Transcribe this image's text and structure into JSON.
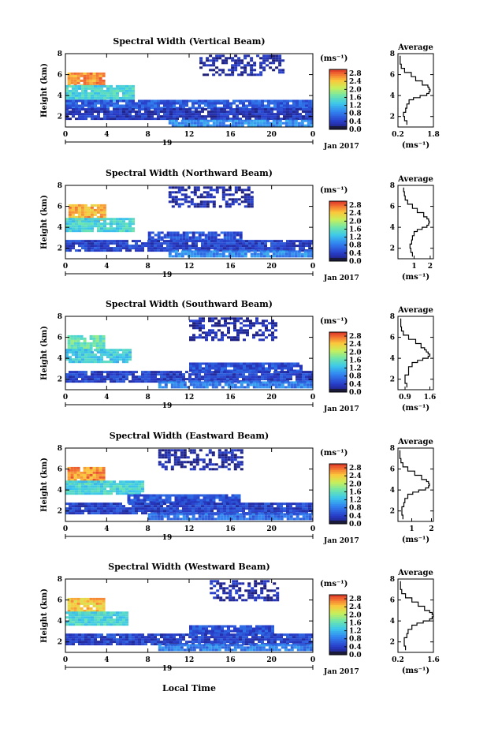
{
  "figure": {
    "bottom_xlabel": "Local Time"
  },
  "chart_data": [
    {
      "type": "heatmap",
      "title": "Spectral Width (Vertical Beam)",
      "ylabel": "Height (km)",
      "ylim": [
        1,
        8
      ],
      "yticks": [
        "2",
        "4",
        "6",
        "8"
      ],
      "xlim": [
        0,
        24
      ],
      "xticks": [
        "0",
        "4",
        "8",
        "12",
        "16",
        "20",
        "0"
      ],
      "day_label": "19",
      "month_label": "Jan 2017",
      "colorbar": {
        "unit": "(ms⁻¹)",
        "ticks": [
          "0.0",
          "0.4",
          "0.8",
          "1.2",
          "1.6",
          "2.0",
          "2.4",
          "2.8"
        ],
        "range": [
          0,
          3.0
        ]
      },
      "layers": [
        {
          "t0": 0.2,
          "t1": 3.8,
          "h0": 4.9,
          "h1": 6.2,
          "value": 2.6
        },
        {
          "t0": 0.0,
          "t1": 6.5,
          "h0": 3.6,
          "h1": 5.0,
          "value": 1.4
        },
        {
          "t0": 0.0,
          "t1": 24.0,
          "h0": 2.8,
          "h1": 3.6,
          "value": 0.6
        },
        {
          "t0": 0.0,
          "t1": 24.0,
          "h0": 1.7,
          "h1": 2.8,
          "value": 0.3
        },
        {
          "t0": 10.0,
          "t1": 24.0,
          "h0": 1.2,
          "h1": 1.7,
          "value": 0.9
        },
        {
          "t0": 13.0,
          "t1": 21.0,
          "h0": 6.0,
          "h1": 7.9,
          "value": 0.2
        }
      ],
      "average_profile": {
        "title": "Average",
        "xlabel": "(ms⁻¹)",
        "xticks": [
          "0.2",
          "1.8"
        ],
        "xlim": [
          0.2,
          1.8
        ],
        "ylim": [
          1,
          8
        ],
        "yticks": [
          "2",
          "4",
          "6",
          "8"
        ],
        "height_km": [
          1.2,
          1.6,
          2.0,
          2.4,
          2.8,
          3.2,
          3.6,
          3.8,
          4.0,
          4.2,
          4.4,
          4.6,
          4.8,
          5.0,
          5.4,
          5.8,
          6.2,
          6.6,
          7.0,
          7.4,
          7.8
        ],
        "width": [
          0.6,
          0.5,
          0.45,
          0.55,
          0.6,
          0.7,
          0.9,
          1.2,
          1.5,
          1.6,
          1.65,
          1.6,
          1.55,
          1.3,
          1.0,
          0.8,
          0.5,
          0.35,
          0.3,
          0.3,
          0.3
        ]
      }
    },
    {
      "type": "heatmap",
      "title": "Spectral Width (Northward Beam)",
      "ylabel": "Height (km)",
      "ylim": [
        1,
        8
      ],
      "yticks": [
        "2",
        "4",
        "6",
        "8"
      ],
      "xlim": [
        0,
        24
      ],
      "xticks": [
        "0",
        "4",
        "8",
        "12",
        "16",
        "20",
        "0"
      ],
      "day_label": "19",
      "month_label": "Jan 2017",
      "colorbar": {
        "unit": "(ms⁻¹)",
        "ticks": [
          "0.0",
          "0.4",
          "0.8",
          "1.2",
          "1.6",
          "2.0",
          "2.4",
          "2.8"
        ],
        "range": [
          0,
          3.0
        ]
      },
      "layers": [
        {
          "t0": 0.3,
          "t1": 3.8,
          "h0": 4.8,
          "h1": 6.2,
          "value": 2.5
        },
        {
          "t0": 0.0,
          "t1": 6.5,
          "h0": 3.6,
          "h1": 4.9,
          "value": 1.4
        },
        {
          "t0": 8.0,
          "t1": 17.0,
          "h0": 2.8,
          "h1": 3.6,
          "value": 0.5
        },
        {
          "t0": 0.0,
          "t1": 24.0,
          "h0": 1.8,
          "h1": 2.8,
          "value": 0.4
        },
        {
          "t0": 10.0,
          "t1": 24.0,
          "h0": 1.2,
          "h1": 1.8,
          "value": 0.9
        },
        {
          "t0": 10.0,
          "t1": 18.0,
          "h0": 6.0,
          "h1": 7.9,
          "value": 0.2
        }
      ],
      "average_profile": {
        "title": "Average",
        "xlabel": "(ms⁻¹)",
        "xticks": [
          "1",
          "2"
        ],
        "xlim": [
          0.0,
          2.2
        ],
        "ylim": [
          1,
          8
        ],
        "yticks": [
          "2",
          "4",
          "6",
          "8"
        ],
        "height_km": [
          1.2,
          1.6,
          2.0,
          2.4,
          2.8,
          3.2,
          3.6,
          3.8,
          4.0,
          4.2,
          4.4,
          4.6,
          4.8,
          5.0,
          5.4,
          5.8,
          6.2,
          6.6,
          7.0,
          7.4,
          7.8
        ],
        "width": [
          0.9,
          0.8,
          0.75,
          0.85,
          0.9,
          1.0,
          1.2,
          1.5,
          1.8,
          1.9,
          1.95,
          1.9,
          1.8,
          1.6,
          1.2,
          0.9,
          0.6,
          0.45,
          0.4,
          0.35,
          0.35
        ]
      }
    },
    {
      "type": "heatmap",
      "title": "Spectral Width (Southward Beam)",
      "ylabel": "Height (km)",
      "ylim": [
        1,
        8
      ],
      "yticks": [
        "2",
        "4",
        "6",
        "8"
      ],
      "xlim": [
        0,
        24
      ],
      "xticks": [
        "0",
        "4",
        "8",
        "12",
        "16",
        "20",
        "0"
      ],
      "day_label": "19",
      "month_label": "Jan 2017",
      "colorbar": {
        "unit": "(ms⁻¹)",
        "ticks": [
          "0.0",
          "0.4",
          "0.8",
          "1.2",
          "1.6",
          "2.0",
          "2.4",
          "2.8"
        ],
        "range": [
          0,
          3.0
        ]
      },
      "layers": [
        {
          "t0": 0.2,
          "t1": 3.8,
          "h0": 4.8,
          "h1": 6.2,
          "value": 1.6
        },
        {
          "t0": 0.0,
          "t1": 6.2,
          "h0": 3.6,
          "h1": 4.9,
          "value": 1.3
        },
        {
          "t0": 12.0,
          "t1": 23.0,
          "h0": 2.8,
          "h1": 3.6,
          "value": 0.5
        },
        {
          "t0": 0.0,
          "t1": 24.0,
          "h0": 1.8,
          "h1": 2.8,
          "value": 0.4
        },
        {
          "t0": 9.0,
          "t1": 24.0,
          "h0": 1.2,
          "h1": 1.8,
          "value": 0.8
        },
        {
          "t0": 12.0,
          "t1": 20.5,
          "h0": 5.8,
          "h1": 7.9,
          "value": 0.2
        }
      ],
      "average_profile": {
        "title": "Average",
        "xlabel": "(ms⁻¹)",
        "xticks": [
          "0.9",
          "1.6"
        ],
        "xlim": [
          0.7,
          1.7
        ],
        "ylim": [
          1,
          8
        ],
        "yticks": [
          "2",
          "4",
          "6",
          "8"
        ],
        "height_km": [
          1.2,
          1.6,
          2.0,
          2.4,
          2.8,
          3.2,
          3.6,
          3.8,
          4.0,
          4.2,
          4.4,
          4.6,
          4.8,
          5.0,
          5.4,
          5.8,
          6.2,
          6.6,
          7.0,
          7.4,
          7.8
        ],
        "width": [
          0.95,
          0.9,
          0.9,
          1.0,
          1.0,
          1.1,
          1.25,
          1.4,
          1.55,
          1.6,
          1.55,
          1.5,
          1.45,
          1.35,
          1.2,
          1.0,
          0.85,
          0.8,
          0.78,
          0.78,
          0.78
        ]
      }
    },
    {
      "type": "heatmap",
      "title": "Spectral Width (Eastward Beam)",
      "ylabel": "Height (km)",
      "ylim": [
        1,
        8
      ],
      "yticks": [
        "2",
        "4",
        "6",
        "8"
      ],
      "xlim": [
        0,
        24
      ],
      "xticks": [
        "0",
        "4",
        "8",
        "12",
        "16",
        "20",
        "0"
      ],
      "day_label": "19",
      "month_label": "Jan 2017",
      "colorbar": {
        "unit": "(ms⁻¹)",
        "ticks": [
          "0.0",
          "0.4",
          "0.8",
          "1.2",
          "1.6",
          "2.0",
          "2.4",
          "2.8"
        ],
        "range": [
          0,
          3.0
        ]
      },
      "layers": [
        {
          "t0": 0.2,
          "t1": 3.8,
          "h0": 4.8,
          "h1": 6.2,
          "value": 2.6
        },
        {
          "t0": 0.0,
          "t1": 7.5,
          "h0": 3.6,
          "h1": 4.9,
          "value": 1.4
        },
        {
          "t0": 6.0,
          "t1": 17.0,
          "h0": 2.8,
          "h1": 3.6,
          "value": 0.5
        },
        {
          "t0": 0.0,
          "t1": 24.0,
          "h0": 1.8,
          "h1": 2.8,
          "value": 0.4
        },
        {
          "t0": 8.0,
          "t1": 24.0,
          "h0": 1.2,
          "h1": 1.8,
          "value": 0.7
        },
        {
          "t0": 9.0,
          "t1": 17.0,
          "h0": 6.0,
          "h1": 7.9,
          "value": 0.2
        }
      ],
      "average_profile": {
        "title": "Average",
        "xlabel": "(ms⁻¹)",
        "xticks": [
          "1",
          "2"
        ],
        "xlim": [
          0.3,
          2.1
        ],
        "ylim": [
          1,
          8
        ],
        "yticks": [
          "2",
          "4",
          "6",
          "8"
        ],
        "height_km": [
          1.2,
          1.6,
          2.0,
          2.4,
          2.8,
          3.2,
          3.6,
          3.8,
          4.0,
          4.2,
          4.4,
          4.6,
          4.8,
          5.0,
          5.4,
          5.8,
          6.2,
          6.6,
          7.0,
          7.4,
          7.8
        ],
        "width": [
          0.55,
          0.5,
          0.5,
          0.6,
          0.65,
          0.8,
          1.05,
          1.35,
          1.7,
          1.85,
          1.9,
          1.85,
          1.75,
          1.5,
          1.15,
          0.8,
          0.55,
          0.45,
          0.4,
          0.4,
          0.4
        ]
      }
    },
    {
      "type": "heatmap",
      "title": "Spectral Width (Westward Beam)",
      "ylabel": "Height (km)",
      "ylim": [
        1,
        8
      ],
      "yticks": [
        "2",
        "4",
        "6",
        "8"
      ],
      "xlim": [
        0,
        24
      ],
      "xticks": [
        "0",
        "4",
        "8",
        "12",
        "16",
        "20",
        "0"
      ],
      "day_label": "19",
      "month_label": "Jan 2017",
      "colorbar": {
        "unit": "(ms⁻¹)",
        "ticks": [
          "0.0",
          "0.4",
          "0.8",
          "1.2",
          "1.6",
          "2.0",
          "2.4",
          "2.8"
        ],
        "range": [
          0,
          3.0
        ]
      },
      "layers": [
        {
          "t0": 0.2,
          "t1": 3.8,
          "h0": 4.8,
          "h1": 6.2,
          "value": 2.4
        },
        {
          "t0": 0.0,
          "t1": 6.0,
          "h0": 3.6,
          "h1": 4.9,
          "value": 1.4
        },
        {
          "t0": 12.0,
          "t1": 20.0,
          "h0": 2.8,
          "h1": 3.6,
          "value": 0.5
        },
        {
          "t0": 0.0,
          "t1": 24.0,
          "h0": 1.8,
          "h1": 2.8,
          "value": 0.4
        },
        {
          "t0": 9.0,
          "t1": 24.0,
          "h0": 1.2,
          "h1": 1.8,
          "value": 0.8
        },
        {
          "t0": 14.0,
          "t1": 20.5,
          "h0": 6.0,
          "h1": 7.9,
          "value": 0.2
        }
      ],
      "average_profile": {
        "title": "Average",
        "xlabel": "(ms⁻¹)",
        "xticks": [
          "0.2",
          "1.6"
        ],
        "xlim": [
          0.2,
          1.6
        ],
        "ylim": [
          1,
          8
        ],
        "yticks": [
          "2",
          "4",
          "6",
          "8"
        ],
        "height_km": [
          1.2,
          1.6,
          2.0,
          2.4,
          2.8,
          3.2,
          3.6,
          3.8,
          4.0,
          4.2,
          4.4,
          4.6,
          4.8,
          5.0,
          5.4,
          5.8,
          6.2,
          6.6,
          7.0,
          7.4,
          7.8
        ],
        "width": [
          0.5,
          0.45,
          0.45,
          0.55,
          0.6,
          0.75,
          0.95,
          1.2,
          1.45,
          1.55,
          1.6,
          1.55,
          1.45,
          1.25,
          1.0,
          0.75,
          0.5,
          0.35,
          0.3,
          0.3,
          0.3
        ]
      }
    }
  ]
}
